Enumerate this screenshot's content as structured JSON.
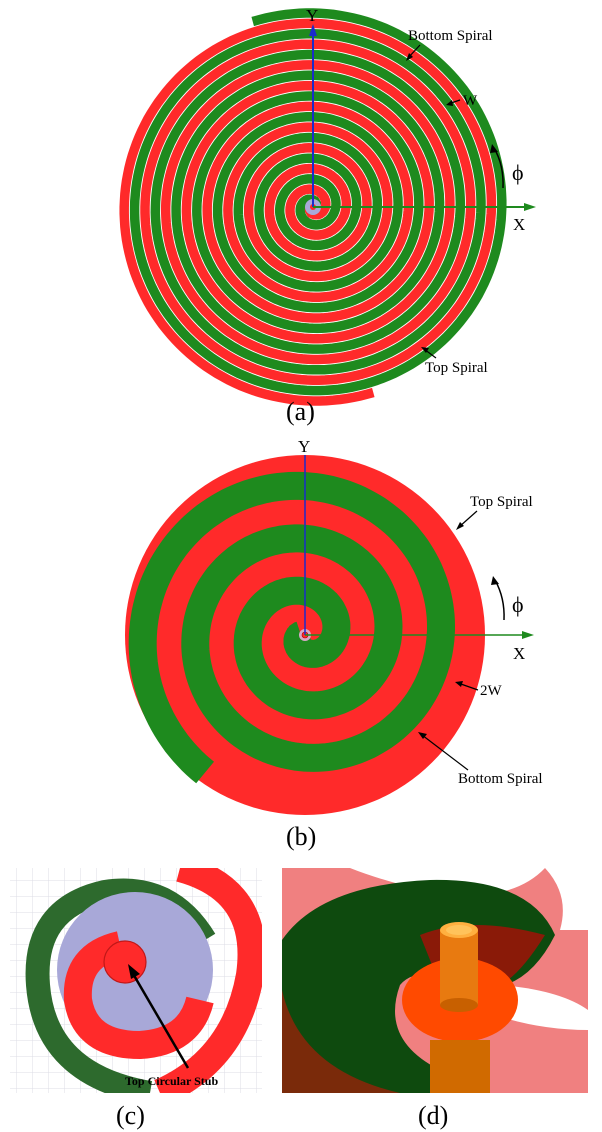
{
  "panel_a": {
    "caption": "(a)",
    "axis_y": "Y",
    "axis_x": "X",
    "label_bottom_spiral": "Bottom Spiral",
    "label_top_spiral": "Top Spiral",
    "label_width": "W",
    "label_angle": "ϕ"
  },
  "panel_b": {
    "caption": "(b)",
    "axis_y": "Y",
    "axis_x": "X",
    "label_top_spiral": "Top Spiral",
    "label_bottom_spiral": "Bottom Spiral",
    "label_width": "2W",
    "label_angle": "ϕ"
  },
  "panel_c": {
    "caption": "(c)",
    "label_stub": "Top Circular Stub"
  },
  "panel_d": {
    "caption": "(d)"
  },
  "colors": {
    "top_spiral": "#ff2a2a",
    "bottom_spiral": "#1e8a1e",
    "substrate": "#a8a8d8",
    "feed": "#f08a00",
    "dark_green": "#0e4a0e"
  }
}
